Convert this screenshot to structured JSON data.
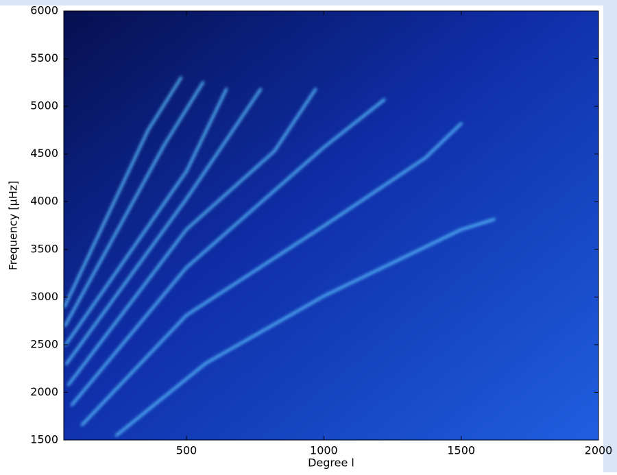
{
  "chart_data": {
    "type": "ridge-spectrum",
    "xlabel": "Degree l",
    "ylabel": "Frequency [μHz]",
    "xlim": [
      53,
      2000
    ],
    "ylim": [
      1500,
      6000
    ],
    "xticks": [
      500,
      1000,
      1500,
      2000
    ],
    "yticks": [
      1500,
      2000,
      2500,
      3000,
      3500,
      4000,
      4500,
      5000,
      5500,
      6000
    ],
    "color": "#5cc4ff",
    "series": [
      {
        "x": [
          245,
          570,
          1000,
          1500,
          1620
        ],
        "values": [
          1550,
          2305,
          3010,
          3707,
          3815
        ]
      },
      {
        "x": [
          120,
          500,
          1000,
          1370,
          1500
        ],
        "values": [
          1660,
          2810,
          3745,
          4460,
          4820
        ]
      },
      {
        "x": [
          83,
          500,
          1000,
          1220
        ],
        "values": [
          1870,
          3310,
          4570,
          5070
        ]
      },
      {
        "x": [
          70,
          500,
          820,
          970
        ],
        "values": [
          2080,
          3710,
          4530,
          5180
        ]
      },
      {
        "x": [
          63,
          500,
          770
        ],
        "values": [
          2300,
          4030,
          5180
        ]
      },
      {
        "x": [
          60,
          500,
          645
        ],
        "values": [
          2500,
          4320,
          5180
        ]
      },
      {
        "x": [
          58,
          420,
          560
        ],
        "values": [
          2700,
          4600,
          5250
        ]
      },
      {
        "x": [
          56,
          360,
          480
        ],
        "values": [
          2900,
          4750,
          5300
        ]
      }
    ]
  }
}
